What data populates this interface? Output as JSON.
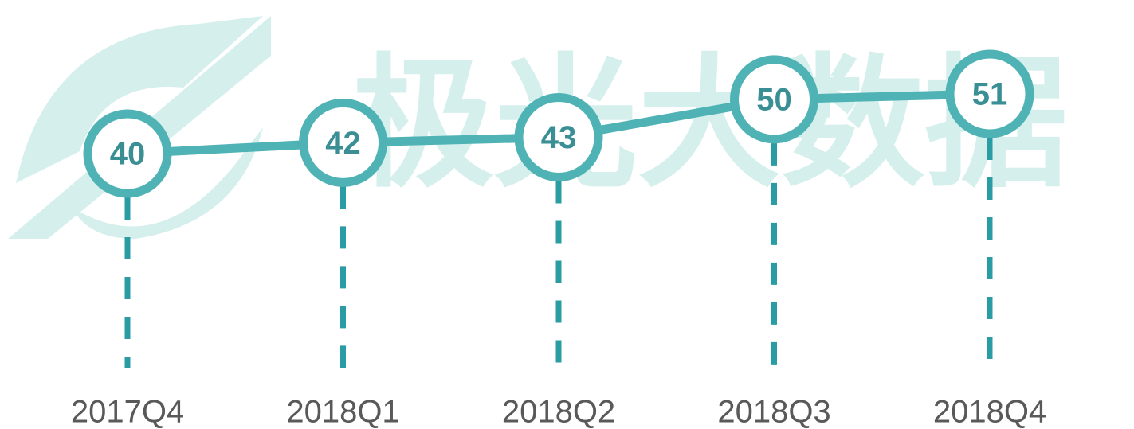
{
  "watermark": "极光大数据",
  "chart_data": {
    "type": "line",
    "categories": [
      "2017Q4",
      "2018Q1",
      "2018Q2",
      "2018Q3",
      "2018Q4"
    ],
    "values": [
      40,
      42,
      43,
      50,
      51
    ],
    "color": "#4fb3b5",
    "drop_line_color": "#2a9ca4"
  }
}
